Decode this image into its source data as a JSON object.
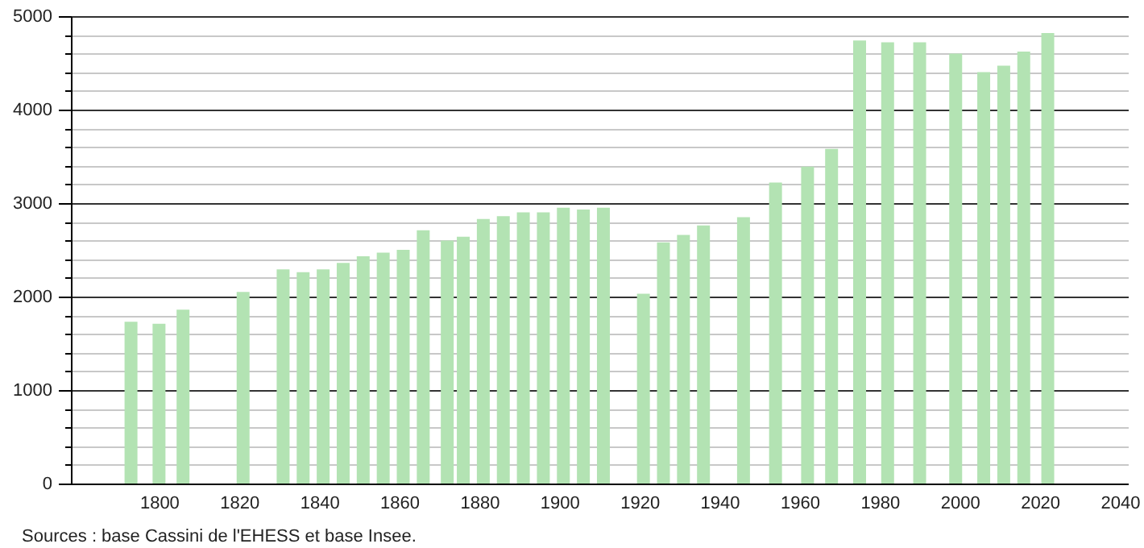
{
  "chart_data": {
    "type": "bar",
    "x": [
      1793,
      1800,
      1806,
      1821,
      1831,
      1836,
      1841,
      1846,
      1851,
      1856,
      1861,
      1866,
      1872,
      1876,
      1881,
      1886,
      1891,
      1896,
      1901,
      1906,
      1911,
      1921,
      1926,
      1931,
      1936,
      1946,
      1954,
      1962,
      1968,
      1975,
      1982,
      1990,
      1999,
      2006,
      2011,
      2016,
      2022
    ],
    "values": [
      1730,
      1710,
      1860,
      2050,
      2290,
      2260,
      2290,
      2360,
      2430,
      2470,
      2500,
      2710,
      2600,
      2640,
      2830,
      2860,
      2900,
      2900,
      2950,
      2930,
      2950,
      2030,
      2580,
      2660,
      2760,
      2850,
      3220,
      3390,
      3580,
      4740,
      4720,
      4720,
      4600,
      4400,
      4470,
      4620,
      4820
    ],
    "color": "#b3e3b3",
    "xlim": [
      1780,
      2040
    ],
    "xticks": [
      1800,
      1820,
      1840,
      1860,
      1880,
      1900,
      1920,
      1940,
      1960,
      1980,
      2000,
      2020,
      2040
    ],
    "ylim": [
      0,
      5000
    ],
    "yticks": [
      0,
      {
        "value": 200,
        "label": null
      },
      {
        "value": 400,
        "label": null
      },
      {
        "value": 600,
        "label": null
      },
      {
        "value": 800,
        "label": null
      },
      1000,
      {
        "value": 1200,
        "label": null
      },
      {
        "value": 1400,
        "label": null
      },
      {
        "value": 1600,
        "label": null
      },
      {
        "value": 1800,
        "label": null
      },
      2000,
      {
        "value": 2200,
        "label": null
      },
      {
        "value": 2400,
        "label": null
      },
      {
        "value": 2600,
        "label": null
      },
      {
        "value": 2800,
        "label": null
      },
      3000,
      {
        "value": 3200,
        "label": null
      },
      {
        "value": 3400,
        "label": null
      },
      {
        "value": 3600,
        "label": null
      },
      {
        "value": 3800,
        "label": null
      },
      4000,
      {
        "value": 4200,
        "label": null
      },
      {
        "value": 4400,
        "label": null
      },
      {
        "value": 4600,
        "label": null
      },
      {
        "value": 4800,
        "label": null
      },
      5000
    ],
    "grid": "y",
    "annotations": [
      "Sources : base Cassini de l'EHESS et base Insee."
    ]
  }
}
